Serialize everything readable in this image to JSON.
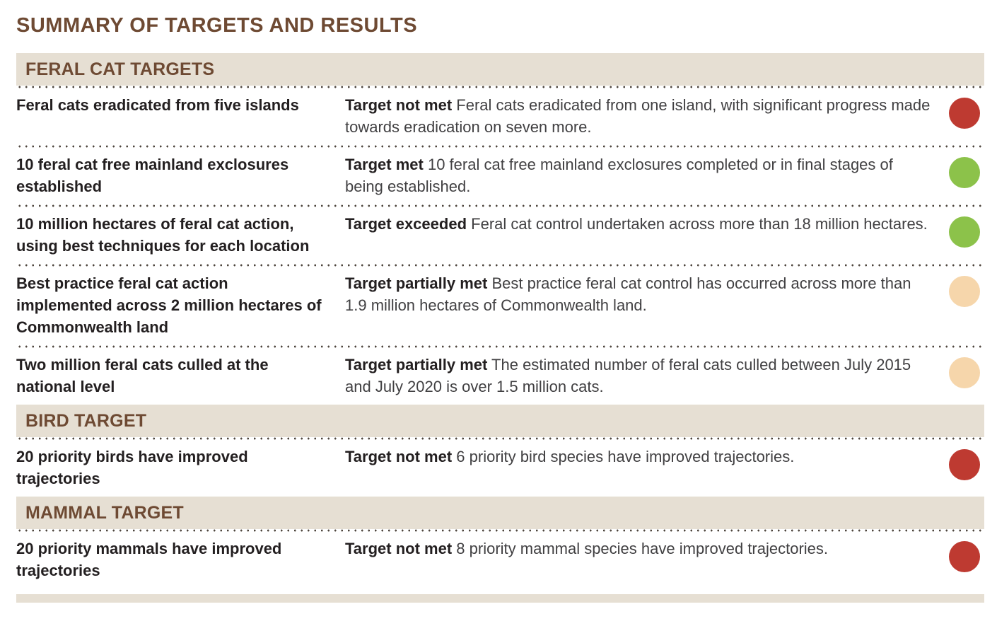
{
  "page_title": "SUMMARY OF TARGETS AND RESULTS",
  "colors": {
    "title_brown": "#6e4a33",
    "section_header_bg": "#e6dfd3",
    "section_header_text": "#6e4a33",
    "target_text": "#231f20",
    "result_text": "#414042",
    "dotted_separator": "#4e463e",
    "status_not_met": "#be3a31",
    "status_met": "#8cc24a",
    "status_exceeded": "#8cc24a",
    "status_partially_met": "#f6d6ab"
  },
  "sections": [
    {
      "header": "FERAL CAT TARGETS",
      "rows": [
        {
          "target": "Feral cats eradicated from five islands",
          "status_label": "Target not met",
          "status": "not-met",
          "result": "Feral cats eradicated from one island, with significant progress made towards eradication on seven more."
        },
        {
          "target": "10 feral cat free mainland exclosures established",
          "status_label": "Target met",
          "status": "met",
          "result": "10 feral cat free mainland exclosures completed or in final stages of being established."
        },
        {
          "target": "10 million hectares of feral cat action, using best techniques for each location",
          "status_label": "Target exceeded",
          "status": "exceeded",
          "result": "Feral cat control undertaken across more than 18 million hectares."
        },
        {
          "target": "Best practice feral cat action implemented across 2 million hectares of Commonwealth land",
          "status_label": "Target partially met",
          "status": "partially-met",
          "result": "Best practice feral cat control has occurred across more than 1.9 million hectares of Commonwealth land."
        },
        {
          "target": "Two million feral cats culled at the national level",
          "status_label": "Target partially met",
          "status": "partially-met",
          "result": "The estimated number of feral cats culled between July 2015 and July 2020 is over 1.5 million cats."
        }
      ]
    },
    {
      "header": "BIRD TARGET",
      "rows": [
        {
          "target": "20 priority birds have improved trajectories",
          "status_label": "Target not met",
          "status": "not-met",
          "result": "6 priority bird species have improved trajectories."
        }
      ]
    },
    {
      "header": "MAMMAL TARGET",
      "rows": [
        {
          "target": "20 priority mammals have improved trajectories",
          "status_label": "Target not met",
          "status": "not-met",
          "result": "8 priority mammal species have improved trajectories."
        }
      ]
    }
  ]
}
